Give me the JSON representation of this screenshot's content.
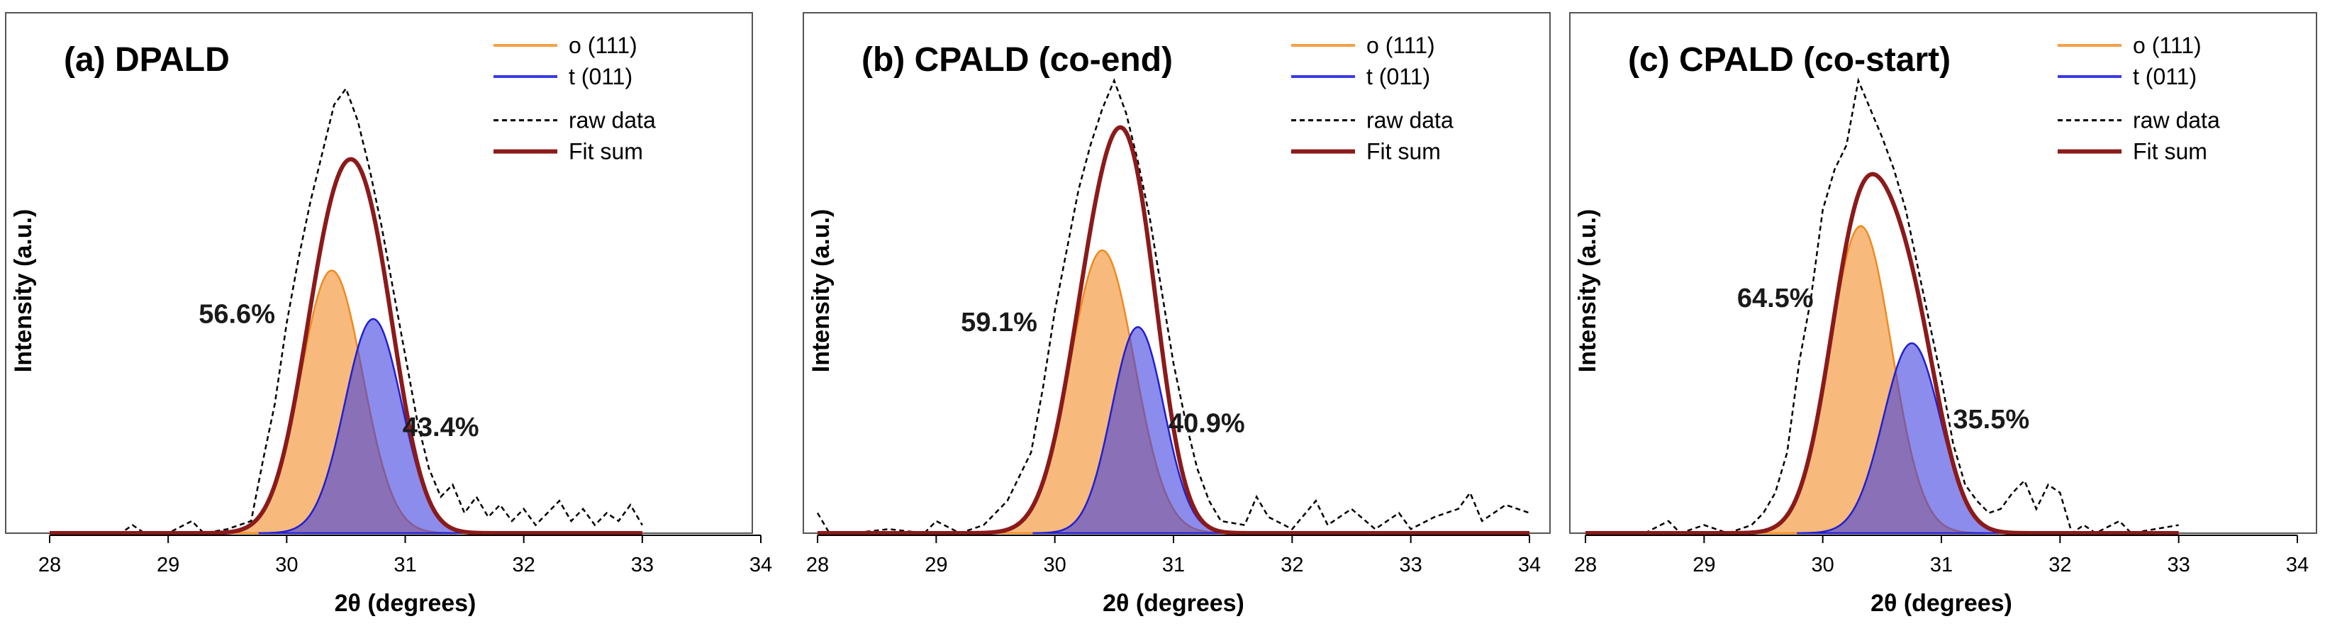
{
  "chart_data": [
    {
      "type": "area",
      "title": "(a) DPALD",
      "xlabel": "2θ (degrees)",
      "ylabel": "Intensity (a.u.)",
      "xlim": [
        28,
        34
      ],
      "x_ticks": [
        "28",
        "29",
        "30",
        "31",
        "32",
        "33",
        "34"
      ],
      "grid": false,
      "legend_position": "top-right",
      "series": [
        {
          "name": "o (111)",
          "kind": "gaussian-fill",
          "color": "#f5a04a",
          "center": 30.38,
          "height": 0.65,
          "sigma": 0.26
        },
        {
          "name": "t (011)",
          "kind": "gaussian-fill",
          "color": "#4040e0",
          "center": 30.73,
          "height": 0.53,
          "sigma": 0.24
        },
        {
          "name": "raw data",
          "kind": "dashed-line",
          "color": "#000000",
          "x": [
            28.0,
            28.2,
            28.4,
            28.6,
            28.7,
            28.8,
            29.0,
            29.2,
            29.3,
            29.5,
            29.7,
            29.8,
            29.9,
            30.0,
            30.1,
            30.2,
            30.3,
            30.4,
            30.5,
            30.6,
            30.7,
            30.8,
            30.9,
            31.0,
            31.1,
            31.2,
            31.3,
            31.4,
            31.5,
            31.6,
            31.7,
            31.8,
            31.9,
            32.0,
            32.1,
            32.2,
            32.3,
            32.4,
            32.5,
            32.6,
            32.7,
            32.8,
            32.9,
            33.0
          ],
          "y": [
            0.0,
            0.0,
            0.0,
            0.0,
            0.02,
            0.0,
            0.0,
            0.03,
            0.0,
            0.01,
            0.03,
            0.18,
            0.32,
            0.52,
            0.68,
            0.82,
            0.94,
            1.06,
            1.1,
            1.02,
            0.9,
            0.76,
            0.6,
            0.44,
            0.28,
            0.16,
            0.09,
            0.12,
            0.05,
            0.09,
            0.04,
            0.07,
            0.03,
            0.06,
            0.02,
            0.05,
            0.08,
            0.03,
            0.06,
            0.02,
            0.05,
            0.03,
            0.07,
            0.02
          ]
        },
        {
          "name": "Fit sum",
          "kind": "solid-line",
          "color": "#8b1a1a"
        }
      ],
      "annotations": [
        {
          "text": "56.6%",
          "x": 29.58,
          "y": 0.52
        },
        {
          "text": "43.4%",
          "x": 31.3,
          "y": 0.24
        }
      ],
      "fit_range": [
        28.0,
        33.0
      ]
    },
    {
      "type": "area",
      "title": "(b) CPALD (co-end)",
      "xlabel": "2θ (degrees)",
      "ylabel": "Intensity (a.u.)",
      "xlim": [
        28,
        34
      ],
      "x_ticks": [
        "28",
        "29",
        "30",
        "31",
        "32",
        "33",
        "34"
      ],
      "grid": false,
      "legend_position": "top-right",
      "series": [
        {
          "name": "o (111)",
          "kind": "gaussian-fill",
          "color": "#f5a04a",
          "center": 30.4,
          "height": 0.7,
          "sigma": 0.27
        },
        {
          "name": "t (011)",
          "kind": "gaussian-fill",
          "color": "#4040e0",
          "center": 30.7,
          "height": 0.51,
          "sigma": 0.22
        },
        {
          "name": "raw data",
          "kind": "dashed-line",
          "color": "#000000",
          "x": [
            28.0,
            28.1,
            28.3,
            28.6,
            28.9,
            29.0,
            29.2,
            29.4,
            29.6,
            29.8,
            29.9,
            30.0,
            30.1,
            30.2,
            30.3,
            30.4,
            30.5,
            30.6,
            30.7,
            30.8,
            30.9,
            31.0,
            31.1,
            31.2,
            31.3,
            31.4,
            31.6,
            31.7,
            31.8,
            32.0,
            32.2,
            32.3,
            32.5,
            32.7,
            32.9,
            33.0,
            33.2,
            33.4,
            33.5,
            33.6,
            33.8,
            34.0
          ],
          "y": [
            0.05,
            0.0,
            0.0,
            0.01,
            0.0,
            0.03,
            0.0,
            0.02,
            0.08,
            0.2,
            0.36,
            0.55,
            0.7,
            0.85,
            0.96,
            1.05,
            1.12,
            1.04,
            0.92,
            0.78,
            0.6,
            0.42,
            0.28,
            0.16,
            0.08,
            0.03,
            0.02,
            0.09,
            0.04,
            0.01,
            0.08,
            0.02,
            0.06,
            0.01,
            0.05,
            0.01,
            0.04,
            0.06,
            0.1,
            0.03,
            0.07,
            0.05
          ]
        },
        {
          "name": "Fit sum",
          "kind": "solid-line",
          "color": "#8b1a1a"
        }
      ],
      "annotations": [
        {
          "text": "59.1%",
          "x": 29.53,
          "y": 0.5
        },
        {
          "text": "40.9%",
          "x": 31.28,
          "y": 0.25
        }
      ],
      "fit_range": [
        28.0,
        34.0
      ]
    },
    {
      "type": "area",
      "title": "(c) CPALD (co-start)",
      "xlabel": "2θ (degrees)",
      "ylabel": "Intensity (a.u.)",
      "xlim": [
        28,
        34
      ],
      "x_ticks": [
        "28",
        "29",
        "30",
        "31",
        "32",
        "33",
        "34"
      ],
      "grid": false,
      "legend_position": "top-right",
      "series": [
        {
          "name": "o (111)",
          "kind": "gaussian-fill",
          "color": "#f5a04a",
          "center": 30.32,
          "height": 0.76,
          "sigma": 0.26
        },
        {
          "name": "t (011)",
          "kind": "gaussian-fill",
          "color": "#4040e0",
          "center": 30.75,
          "height": 0.47,
          "sigma": 0.24
        },
        {
          "name": "raw data",
          "kind": "dashed-line",
          "color": "#000000",
          "x": [
            28.5,
            28.7,
            28.8,
            29.0,
            29.2,
            29.4,
            29.5,
            29.6,
            29.7,
            29.8,
            29.9,
            30.0,
            30.1,
            30.2,
            30.3,
            30.4,
            30.5,
            30.6,
            30.7,
            30.8,
            30.9,
            31.0,
            31.1,
            31.2,
            31.3,
            31.4,
            31.5,
            31.6,
            31.7,
            31.8,
            31.9,
            32.0,
            32.1,
            32.2,
            32.3,
            32.5,
            32.6,
            33.0
          ],
          "y": [
            0.0,
            0.03,
            0.0,
            0.02,
            0.0,
            0.02,
            0.05,
            0.1,
            0.2,
            0.42,
            0.58,
            0.8,
            0.9,
            0.96,
            1.12,
            1.05,
            0.98,
            0.9,
            0.8,
            0.66,
            0.52,
            0.38,
            0.22,
            0.12,
            0.08,
            0.05,
            0.06,
            0.1,
            0.13,
            0.06,
            0.12,
            0.1,
            0.0,
            0.02,
            0.0,
            0.03,
            0.0,
            0.02
          ]
        },
        {
          "name": "Fit sum",
          "kind": "solid-line",
          "color": "#8b1a1a"
        }
      ],
      "annotations": [
        {
          "text": "64.5%",
          "x": 29.6,
          "y": 0.56
        },
        {
          "text": "35.5%",
          "x": 31.42,
          "y": 0.26
        }
      ],
      "fit_range": [
        28.0,
        33.0
      ]
    }
  ]
}
